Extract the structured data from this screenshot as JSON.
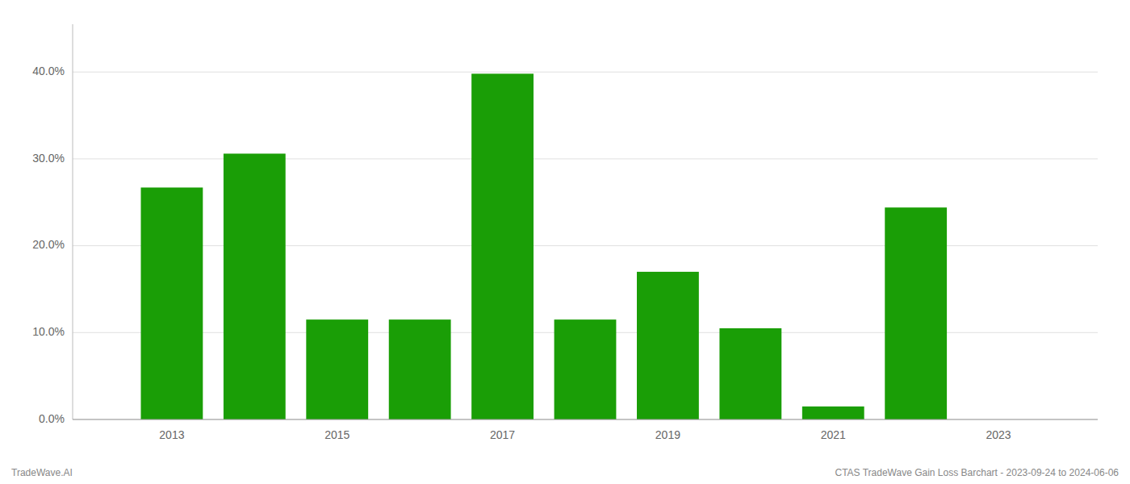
{
  "chart_data": {
    "type": "bar",
    "x": [
      2013,
      2014,
      2015,
      2016,
      2017,
      2018,
      2019,
      2020,
      2021,
      2022,
      2023
    ],
    "values": [
      0.267,
      0.306,
      0.115,
      0.115,
      0.398,
      0.115,
      0.17,
      0.105,
      0.015,
      0.244,
      0.0
    ],
    "color": "#1a9e06",
    "xlim": [
      2011.8,
      2024.2
    ],
    "xticks": [
      2013,
      2015,
      2017,
      2019,
      2021,
      2023
    ],
    "ylim": [
      0.0,
      0.455
    ],
    "yticks": [
      {
        "value": 0.0,
        "label": "0.0%"
      },
      {
        "value": 0.1,
        "label": "10.0%"
      },
      {
        "value": 0.2,
        "label": "20.0%"
      },
      {
        "value": 0.3,
        "label": "30.0%"
      },
      {
        "value": 0.4,
        "label": "40.0%"
      }
    ],
    "grid": true,
    "annotations": [
      "TradeWave.AI",
      "CTAS TradeWave Gain Loss Barchart - 2023-09-24 to 2024-06-06"
    ]
  }
}
